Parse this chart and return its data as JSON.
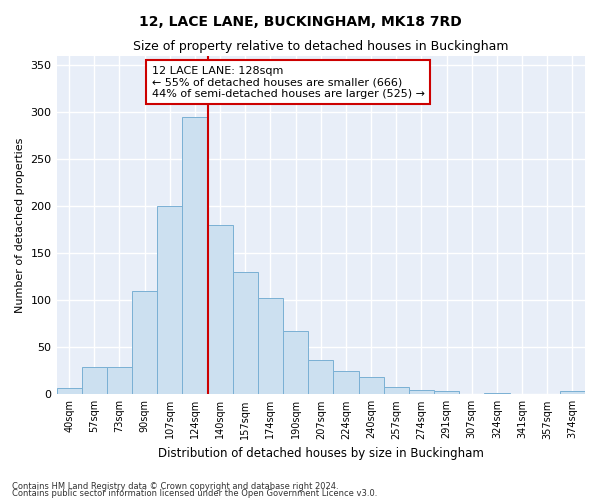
{
  "title": "12, LACE LANE, BUCKINGHAM, MK18 7RD",
  "subtitle": "Size of property relative to detached houses in Buckingham",
  "xlabel": "Distribution of detached houses by size in Buckingham",
  "ylabel": "Number of detached properties",
  "categories": [
    "40sqm",
    "57sqm",
    "73sqm",
    "90sqm",
    "107sqm",
    "124sqm",
    "140sqm",
    "157sqm",
    "174sqm",
    "190sqm",
    "207sqm",
    "224sqm",
    "240sqm",
    "257sqm",
    "274sqm",
    "291sqm",
    "307sqm",
    "324sqm",
    "341sqm",
    "357sqm",
    "374sqm"
  ],
  "values": [
    7,
    29,
    29,
    110,
    200,
    295,
    180,
    130,
    102,
    67,
    36,
    25,
    18,
    8,
    5,
    4,
    0,
    1,
    0,
    0,
    3
  ],
  "bar_color": "#cce0f0",
  "bar_edge_color": "#7ab0d4",
  "vline_x_index": 5.5,
  "vline_color": "#cc0000",
  "annotation_line1": "12 LACE LANE: 128sqm",
  "annotation_line2": "← 55% of detached houses are smaller (666)",
  "annotation_line3": "44% of semi-detached houses are larger (525) →",
  "annotation_box_edge": "#cc0000",
  "annotation_box_fill": "#ffffff",
  "ylim": [
    0,
    360
  ],
  "bg_color": "#e8eef8",
  "grid_color": "#ffffff",
  "footer1": "Contains HM Land Registry data © Crown copyright and database right 2024.",
  "footer2": "Contains public sector information licensed under the Open Government Licence v3.0."
}
